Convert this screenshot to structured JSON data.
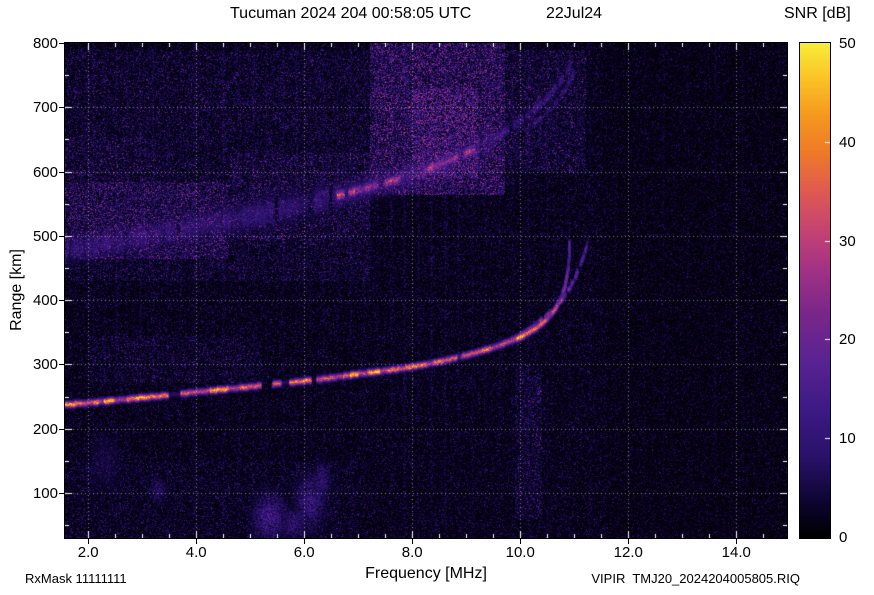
{
  "footer": {
    "rxmask": "RxMask 11111111",
    "file": "VIPIR  TMJ20_2024204005805.RIQ"
  },
  "chart_data": {
    "type": "heatmap",
    "title": "Tucuman 2024 204 00:58:05 UTC",
    "date_label": "22Jul24",
    "xlabel": "Frequency [MHz]",
    "ylabel": "Range [km]",
    "colorbar_label": "SNR [dB]",
    "x_range": [
      1.57,
      14.94
    ],
    "y_range": [
      30,
      800
    ],
    "x_ticks": [
      2,
      4,
      6,
      8,
      10,
      12,
      14
    ],
    "x_tick_labels": [
      "2.0",
      "4.0",
      "6.0",
      "8.0",
      "10.0",
      "12.0",
      "14.0"
    ],
    "x_minor_step": 0.5,
    "y_ticks": [
      100,
      200,
      300,
      400,
      500,
      600,
      700,
      800
    ],
    "y_tick_labels": [
      "100",
      "200",
      "300",
      "400",
      "500",
      "600",
      "700",
      "800"
    ],
    "y_minor_step": 50,
    "grid": true,
    "colorbar_range": [
      0,
      50
    ],
    "colorbar_ticks": [
      0,
      10,
      20,
      30,
      40,
      50
    ],
    "colorbar_tick_labels": [
      "0",
      "10",
      "20",
      "30",
      "40",
      "50"
    ],
    "colormap": [
      [
        0.0,
        "#000000"
      ],
      [
        0.07,
        "#0d0530"
      ],
      [
        0.16,
        "#2a1168"
      ],
      [
        0.26,
        "#3d1a85"
      ],
      [
        0.36,
        "#5b2393"
      ],
      [
        0.46,
        "#7d2789"
      ],
      [
        0.54,
        "#a23286"
      ],
      [
        0.62,
        "#c44374"
      ],
      [
        0.7,
        "#e05a52"
      ],
      [
        0.78,
        "#ef7b28"
      ],
      [
        0.86,
        "#f69c1e"
      ],
      [
        0.93,
        "#fbc427"
      ],
      [
        1.0,
        "#f7ee3a"
      ]
    ],
    "noise_regions": [
      {
        "f0": 1.57,
        "f1": 4.6,
        "r0": 465,
        "r1": 585,
        "gain": 3.0
      },
      {
        "f0": 1.57,
        "f1": 3.3,
        "r0": 585,
        "r1": 655,
        "gain": 1.9
      },
      {
        "f0": 4.6,
        "f1": 7.2,
        "r0": 495,
        "r1": 630,
        "gain": 2.1
      },
      {
        "f0": 1.57,
        "f1": 7.2,
        "r0": 430,
        "r1": 790,
        "gain": 1.55
      },
      {
        "f0": 7.2,
        "f1": 9.7,
        "r0": 565,
        "r1": 800,
        "gain": 3.6
      },
      {
        "f0": 8.0,
        "f1": 9.2,
        "r0": 590,
        "r1": 730,
        "gain": 5.5
      },
      {
        "f0": 9.7,
        "f1": 11.2,
        "r0": 600,
        "r1": 790,
        "gain": 1.9
      },
      {
        "f0": 2.0,
        "f1": 5.2,
        "r0": 272,
        "r1": 345,
        "gain": 1.5
      },
      {
        "f0": 1.57,
        "f1": 7.0,
        "r0": 30,
        "r1": 150,
        "gain": 1.25
      },
      {
        "f0": 9.9,
        "f1": 10.4,
        "r0": 60,
        "r1": 300,
        "gain": 1.8
      }
    ],
    "base_damp": [
      {
        "f0": 11.6,
        "f1": 14.94,
        "factor": 0.8
      }
    ],
    "rfi_stripes": [
      {
        "f": 2.08,
        "g": 5
      },
      {
        "f": 2.3,
        "g": 3.5
      },
      {
        "f": 2.52,
        "g": 4.5
      },
      {
        "f": 2.72,
        "g": 3.5
      },
      {
        "f": 2.95,
        "g": 5
      },
      {
        "f": 3.2,
        "g": 3.5
      },
      {
        "f": 3.45,
        "g": 4
      },
      {
        "f": 3.7,
        "g": 3.5
      },
      {
        "f": 3.95,
        "g": 4.5
      },
      {
        "f": 4.2,
        "g": 3.5
      },
      {
        "f": 4.5,
        "g": 5
      },
      {
        "f": 4.8,
        "g": 3.5
      },
      {
        "f": 5.05,
        "g": 4
      },
      {
        "f": 5.3,
        "g": 3.5
      },
      {
        "f": 5.6,
        "g": 5
      },
      {
        "f": 5.85,
        "g": 4
      },
      {
        "f": 6.1,
        "g": 3.5
      },
      {
        "f": 6.35,
        "g": 4.5
      },
      {
        "f": 6.6,
        "g": 3.5
      },
      {
        "f": 6.85,
        "g": 5
      },
      {
        "f": 7.1,
        "g": 4
      },
      {
        "f": 7.35,
        "g": 3.5
      },
      {
        "f": 7.6,
        "g": 6
      },
      {
        "f": 7.85,
        "g": 7
      },
      {
        "f": 8.1,
        "g": 6
      },
      {
        "f": 8.35,
        "g": 8
      },
      {
        "f": 8.6,
        "g": 7
      },
      {
        "f": 8.85,
        "g": 6
      },
      {
        "f": 9.1,
        "g": 5
      },
      {
        "f": 9.35,
        "g": 4
      },
      {
        "f": 9.6,
        "g": 5
      },
      {
        "f": 9.85,
        "g": 3.5
      },
      {
        "f": 10.15,
        "g": 6
      },
      {
        "f": 10.5,
        "g": 4
      },
      {
        "f": 10.9,
        "g": 3.5
      },
      {
        "f": 11.3,
        "g": 2.5
      },
      {
        "f": 11.75,
        "g": 2.5
      },
      {
        "f": 12.3,
        "g": 2.5
      },
      {
        "f": 12.65,
        "g": 3.5
      },
      {
        "f": 13.1,
        "g": 2.5
      },
      {
        "f": 13.6,
        "g": 4.5
      },
      {
        "f": 14.1,
        "g": 2.5
      },
      {
        "f": 14.55,
        "g": 2.5
      }
    ],
    "traces": [
      {
        "name": "F-region O-mode echo",
        "snr_db": 43,
        "width_km": 7,
        "speckle": 0.3,
        "dash": {
          "seg": 8,
          "drop": 0.08,
          "min": 0.3
        },
        "fade": {
          "f0": 10.3,
          "f1": 10.91,
          "to": 20
        },
        "points": [
          [
            1.57,
            238
          ],
          [
            2.0,
            241
          ],
          [
            2.5,
            245
          ],
          [
            3.0,
            249
          ],
          [
            3.5,
            253
          ],
          [
            4.0,
            258
          ],
          [
            4.5,
            262
          ],
          [
            5.0,
            266
          ],
          [
            5.5,
            271
          ],
          [
            6.0,
            275
          ],
          [
            6.5,
            280
          ],
          [
            7.0,
            286
          ],
          [
            7.5,
            291
          ],
          [
            8.0,
            297
          ],
          [
            8.5,
            305
          ],
          [
            9.0,
            315
          ],
          [
            9.5,
            327
          ],
          [
            10.0,
            343
          ],
          [
            10.3,
            358
          ],
          [
            10.5,
            372
          ],
          [
            10.65,
            388
          ],
          [
            10.75,
            404
          ],
          [
            10.82,
            422
          ],
          [
            10.87,
            444
          ],
          [
            10.9,
            468
          ],
          [
            10.91,
            492
          ]
        ]
      },
      {
        "name": "F-region X-mode echo",
        "snr_db": 26,
        "width_km": 6,
        "speckle": 0.5,
        "dash": {
          "seg": 5,
          "drop": 0.3,
          "min": 0.2
        },
        "fade": {
          "f0": 10.8,
          "f1": 11.24,
          "to": 14
        },
        "points": [
          [
            9.6,
            330
          ],
          [
            10.0,
            347
          ],
          [
            10.3,
            364
          ],
          [
            10.55,
            382
          ],
          [
            10.75,
            400
          ],
          [
            10.9,
            418
          ],
          [
            11.02,
            438
          ],
          [
            11.12,
            458
          ],
          [
            11.2,
            478
          ],
          [
            11.24,
            492
          ]
        ]
      },
      {
        "name": "second-hop diffuse band",
        "snr_db": 9.5,
        "width_km": 34,
        "speckle": 0.85,
        "dash": {
          "seg": 3,
          "drop": 0.05,
          "min": 0.3
        },
        "points": [
          [
            1.57,
            480
          ],
          [
            2.0,
            486
          ],
          [
            2.5,
            493
          ],
          [
            3.0,
            500
          ],
          [
            3.5,
            508
          ],
          [
            4.0,
            516
          ],
          [
            4.5,
            524
          ],
          [
            5.0,
            532
          ],
          [
            5.5,
            541
          ],
          [
            6.0,
            551
          ],
          [
            6.5,
            561
          ],
          [
            7.0,
            572
          ],
          [
            7.5,
            584
          ],
          [
            8.0,
            597
          ],
          [
            8.5,
            612
          ],
          [
            9.0,
            630
          ],
          [
            9.5,
            652
          ]
        ]
      },
      {
        "name": "second-hop bright core",
        "snr_db": 31,
        "width_km": 11,
        "speckle": 0.55,
        "dash": {
          "seg": 5,
          "drop": 0.15,
          "min": 0.25
        },
        "points": [
          [
            6.6,
            563
          ],
          [
            7.0,
            572
          ],
          [
            7.4,
            581
          ],
          [
            7.8,
            591
          ],
          [
            8.2,
            603
          ],
          [
            8.6,
            615
          ],
          [
            9.0,
            630
          ],
          [
            9.3,
            641
          ]
        ]
      },
      {
        "name": "second-hop upper arc",
        "snr_db": 11,
        "width_km": 13,
        "speckle": 0.75,
        "dash": {
          "seg": 4,
          "drop": 0.2,
          "min": 0.2
        },
        "points": [
          [
            9.5,
            652
          ],
          [
            9.8,
            668
          ],
          [
            10.1,
            686
          ],
          [
            10.4,
            708
          ],
          [
            10.6,
            726
          ],
          [
            10.8,
            748
          ],
          [
            10.93,
            766
          ]
        ]
      },
      {
        "name": "second-hop X arc",
        "snr_db": 8,
        "width_km": 10,
        "speckle": 0.8,
        "dash": {
          "seg": 4,
          "drop": 0.3,
          "min": 0.2
        },
        "points": [
          [
            10.1,
            664
          ],
          [
            10.4,
            686
          ],
          [
            10.65,
            708
          ],
          [
            10.85,
            732
          ],
          [
            11.0,
            756
          ]
        ]
      }
    ],
    "blobs": [
      {
        "f": 5.35,
        "r": 62,
        "df": 0.22,
        "dr": 26,
        "snr": 13
      },
      {
        "f": 5.8,
        "r": 52,
        "df": 0.16,
        "dr": 18,
        "snr": 10
      },
      {
        "f": 6.1,
        "r": 88,
        "df": 0.2,
        "dr": 30,
        "snr": 11
      },
      {
        "f": 6.32,
        "r": 120,
        "df": 0.12,
        "dr": 22,
        "snr": 9
      },
      {
        "f": 3.3,
        "r": 104,
        "df": 0.12,
        "dr": 14,
        "snr": 8
      },
      {
        "f": 2.3,
        "r": 150,
        "df": 0.25,
        "dr": 35,
        "snr": 5
      }
    ]
  }
}
